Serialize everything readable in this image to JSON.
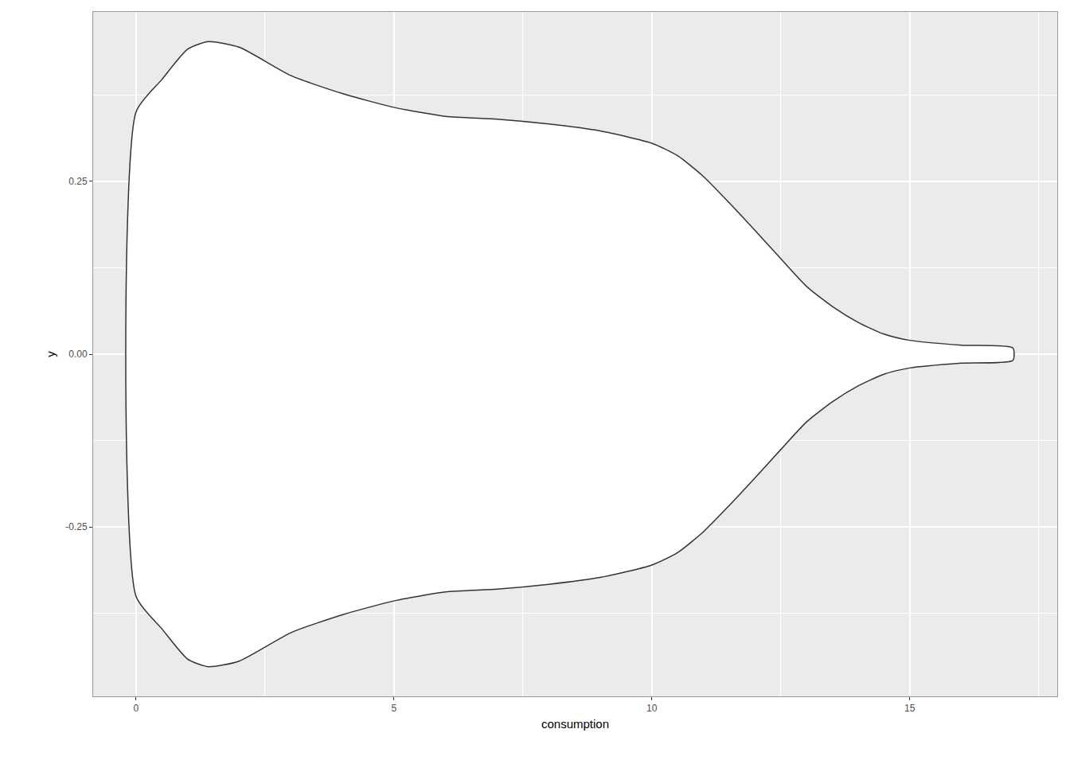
{
  "chart_data": {
    "type": "violin",
    "x_label": "consumption",
    "y_label": "y",
    "x": [
      0,
      0.5,
      1,
      1.4,
      2,
      3,
      4,
      5,
      6,
      7,
      8,
      9,
      10,
      10.5,
      11,
      11.5,
      12,
      12.5,
      13,
      13.5,
      14,
      14.5,
      15,
      16,
      17
    ],
    "values": [
      0.35,
      0.397,
      0.441,
      0.452,
      0.444,
      0.403,
      0.377,
      0.357,
      0.344,
      0.34,
      0.333,
      0.323,
      0.305,
      0.287,
      0.257,
      0.219,
      0.179,
      0.138,
      0.098,
      0.069,
      0.046,
      0.029,
      0.02,
      0.013,
      0.009
    ],
    "color": "#ffffff",
    "xlim": [
      -0.83,
      17.86
    ],
    "xticks": [
      0,
      5,
      10,
      15
    ],
    "ylim": [
      -0.495,
      0.495
    ],
    "yticks": [
      -0.25,
      {
        "value": 0,
        "label": "0.00"
      },
      0.25
    ],
    "grid": true
  }
}
